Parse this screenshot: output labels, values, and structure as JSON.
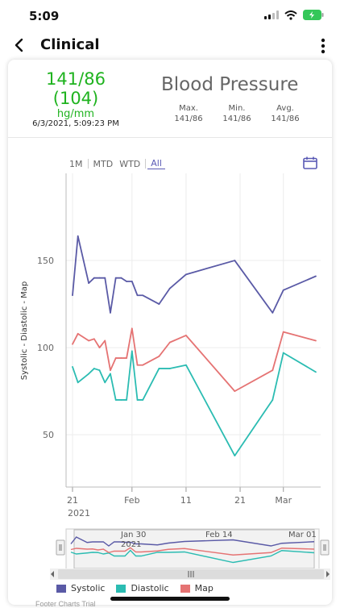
{
  "status_bar": {
    "time": "5:09"
  },
  "nav": {
    "title": "Clinical"
  },
  "summary": {
    "reading": "141/86",
    "map": "(104)",
    "unit": "hg/mm",
    "timestamp": "6/3/2021, 5:09:23 PM",
    "title": "Blood Pressure",
    "stats": [
      {
        "label": "Max.",
        "value": "141/86"
      },
      {
        "label": "Min.",
        "value": "141/86"
      },
      {
        "label": "Avg.",
        "value": "141/86"
      }
    ]
  },
  "range_tabs": [
    "1M",
    "MTD",
    "WTD",
    "All"
  ],
  "range_active": "All",
  "colors": {
    "systolic": "#5a5aa6",
    "diastolic": "#2bbcb2",
    "map": "#e57373",
    "accent": "#5a5ab5",
    "reading": "#1fb31f"
  },
  "chart_data": {
    "type": "line",
    "ylabel": "Systolic - Diastolic - Map",
    "ylim": [
      20,
      200
    ],
    "yticks": [
      50,
      100,
      150
    ],
    "xlim": [
      "2021-01-21",
      "2021-03-07"
    ],
    "xticks": [
      {
        "x": "2021-01-21",
        "label": "21"
      },
      {
        "x": "2021-02-01",
        "label": "Feb"
      },
      {
        "x": "2021-02-11",
        "label": "11"
      },
      {
        "x": "2021-02-21",
        "label": "21"
      },
      {
        "x": "2021-03-01",
        "label": "Mar"
      }
    ],
    "year_label": "2021",
    "x": [
      "2021-01-21",
      "2021-01-22",
      "2021-01-24",
      "2021-01-25",
      "2021-01-26",
      "2021-01-27",
      "2021-01-28",
      "2021-01-29",
      "2021-01-30",
      "2021-01-31",
      "2021-02-01",
      "2021-02-02",
      "2021-02-03",
      "2021-02-06",
      "2021-02-08",
      "2021-02-11",
      "2021-02-20",
      "2021-02-27",
      "2021-03-01",
      "2021-03-07"
    ],
    "series": [
      {
        "name": "Systolic",
        "values": [
          130,
          164,
          137,
          140,
          140,
          140,
          120,
          140,
          140,
          138,
          138,
          130,
          130,
          125,
          134,
          142,
          150,
          120,
          133,
          141
        ]
      },
      {
        "name": "Diastolic",
        "values": [
          89,
          80,
          85,
          88,
          87,
          80,
          85,
          70,
          70,
          70,
          98,
          70,
          70,
          88,
          88,
          90,
          38,
          70,
          97,
          86
        ]
      },
      {
        "name": "Map",
        "values": [
          102,
          108,
          104,
          105,
          100,
          104,
          87,
          94,
          94,
          94,
          111,
          90,
          90,
          95,
          103,
          107,
          75,
          87,
          109,
          104
        ]
      }
    ]
  },
  "navigator": {
    "labels": [
      "Jan 30",
      "Feb 14",
      "Mar 01"
    ],
    "year": "2021"
  },
  "footer": "Footer Charts Trial"
}
